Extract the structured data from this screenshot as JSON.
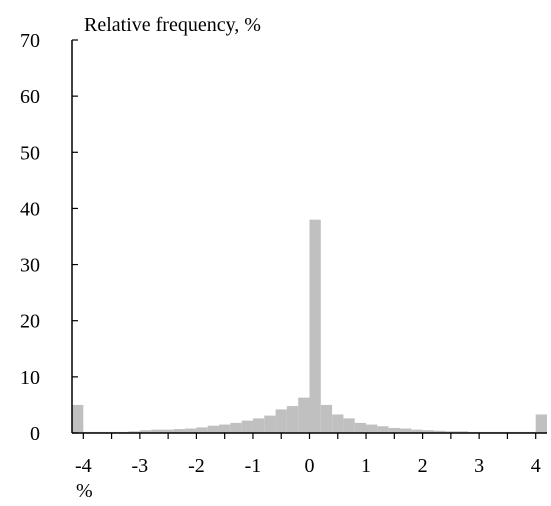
{
  "chart_data": {
    "type": "bar",
    "ylabel": "Relative frequency, %",
    "xlabel": "%",
    "xlim": [
      -4.2,
      4.2
    ],
    "ylim": [
      0,
      70
    ],
    "bin_width": 0.2,
    "bins": [
      {
        "x0": -4.2,
        "x1": -4.0,
        "value": 5.0
      },
      {
        "x0": -4.0,
        "x1": -3.8,
        "value": 0.2
      },
      {
        "x0": -3.8,
        "x1": -3.6,
        "value": 0.2
      },
      {
        "x0": -3.6,
        "x1": -3.4,
        "value": 0.2
      },
      {
        "x0": -3.4,
        "x1": -3.2,
        "value": 0.2
      },
      {
        "x0": -3.2,
        "x1": -3.0,
        "value": 0.3
      },
      {
        "x0": -3.0,
        "x1": -2.8,
        "value": 0.5
      },
      {
        "x0": -2.8,
        "x1": -2.6,
        "value": 0.6
      },
      {
        "x0": -2.6,
        "x1": -2.4,
        "value": 0.6
      },
      {
        "x0": -2.4,
        "x1": -2.2,
        "value": 0.7
      },
      {
        "x0": -2.2,
        "x1": -2.0,
        "value": 0.8
      },
      {
        "x0": -2.0,
        "x1": -1.8,
        "value": 1.0
      },
      {
        "x0": -1.8,
        "x1": -1.6,
        "value": 1.3
      },
      {
        "x0": -1.6,
        "x1": -1.4,
        "value": 1.5
      },
      {
        "x0": -1.4,
        "x1": -1.2,
        "value": 1.8
      },
      {
        "x0": -1.2,
        "x1": -1.0,
        "value": 2.2
      },
      {
        "x0": -1.0,
        "x1": -0.8,
        "value": 2.6
      },
      {
        "x0": -0.8,
        "x1": -0.6,
        "value": 3.1
      },
      {
        "x0": -0.6,
        "x1": -0.4,
        "value": 4.2
      },
      {
        "x0": -0.4,
        "x1": -0.2,
        "value": 4.8
      },
      {
        "x0": -0.2,
        "x1": 0.0,
        "value": 6.3
      },
      {
        "x0": 0.0,
        "x1": 0.2,
        "value": 38.0
      },
      {
        "x0": 0.2,
        "x1": 0.4,
        "value": 5.0
      },
      {
        "x0": 0.4,
        "x1": 0.6,
        "value": 3.3
      },
      {
        "x0": 0.6,
        "x1": 0.8,
        "value": 2.6
      },
      {
        "x0": 0.8,
        "x1": 1.0,
        "value": 1.8
      },
      {
        "x0": 1.0,
        "x1": 1.2,
        "value": 1.5
      },
      {
        "x0": 1.2,
        "x1": 1.4,
        "value": 1.2
      },
      {
        "x0": 1.4,
        "x1": 1.6,
        "value": 0.9
      },
      {
        "x0": 1.6,
        "x1": 1.8,
        "value": 0.8
      },
      {
        "x0": 1.8,
        "x1": 2.0,
        "value": 0.6
      },
      {
        "x0": 2.0,
        "x1": 2.2,
        "value": 0.5
      },
      {
        "x0": 2.2,
        "x1": 2.4,
        "value": 0.4
      },
      {
        "x0": 2.4,
        "x1": 2.6,
        "value": 0.3
      },
      {
        "x0": 2.6,
        "x1": 2.8,
        "value": 0.3
      },
      {
        "x0": 2.8,
        "x1": 3.0,
        "value": 0.2
      },
      {
        "x0": 3.0,
        "x1": 3.2,
        "value": 0.2
      },
      {
        "x0": 3.2,
        "x1": 3.4,
        "value": 0.2
      },
      {
        "x0": 3.4,
        "x1": 3.6,
        "value": 0.2
      },
      {
        "x0": 3.6,
        "x1": 3.8,
        "value": 0.2
      },
      {
        "x0": 3.8,
        "x1": 4.0,
        "value": 0.2
      },
      {
        "x0": 4.0,
        "x1": 4.2,
        "value": 3.3
      }
    ],
    "x_ticks": [
      {
        "value": -4,
        "label": "-4"
      },
      {
        "value": -3,
        "label": "-3"
      },
      {
        "value": -2,
        "label": "-2"
      },
      {
        "value": -1,
        "label": "-1"
      },
      {
        "value": 0,
        "label": "0"
      },
      {
        "value": 1,
        "label": "1"
      },
      {
        "value": 2,
        "label": "2"
      },
      {
        "value": 3,
        "label": "3"
      },
      {
        "value": 4,
        "label": "4"
      }
    ],
    "x_minor_step": 0.5,
    "y_ticks": [
      {
        "value": 0,
        "label": "0"
      },
      {
        "value": 10,
        "label": "10"
      },
      {
        "value": 20,
        "label": "20"
      },
      {
        "value": 30,
        "label": "30"
      },
      {
        "value": 40,
        "label": "40"
      },
      {
        "value": 50,
        "label": "50"
      },
      {
        "value": 60,
        "label": "60"
      },
      {
        "value": 70,
        "label": "70"
      }
    ],
    "grid": false,
    "bar_color": "#c0c0c0",
    "axis_color": "#000000"
  }
}
